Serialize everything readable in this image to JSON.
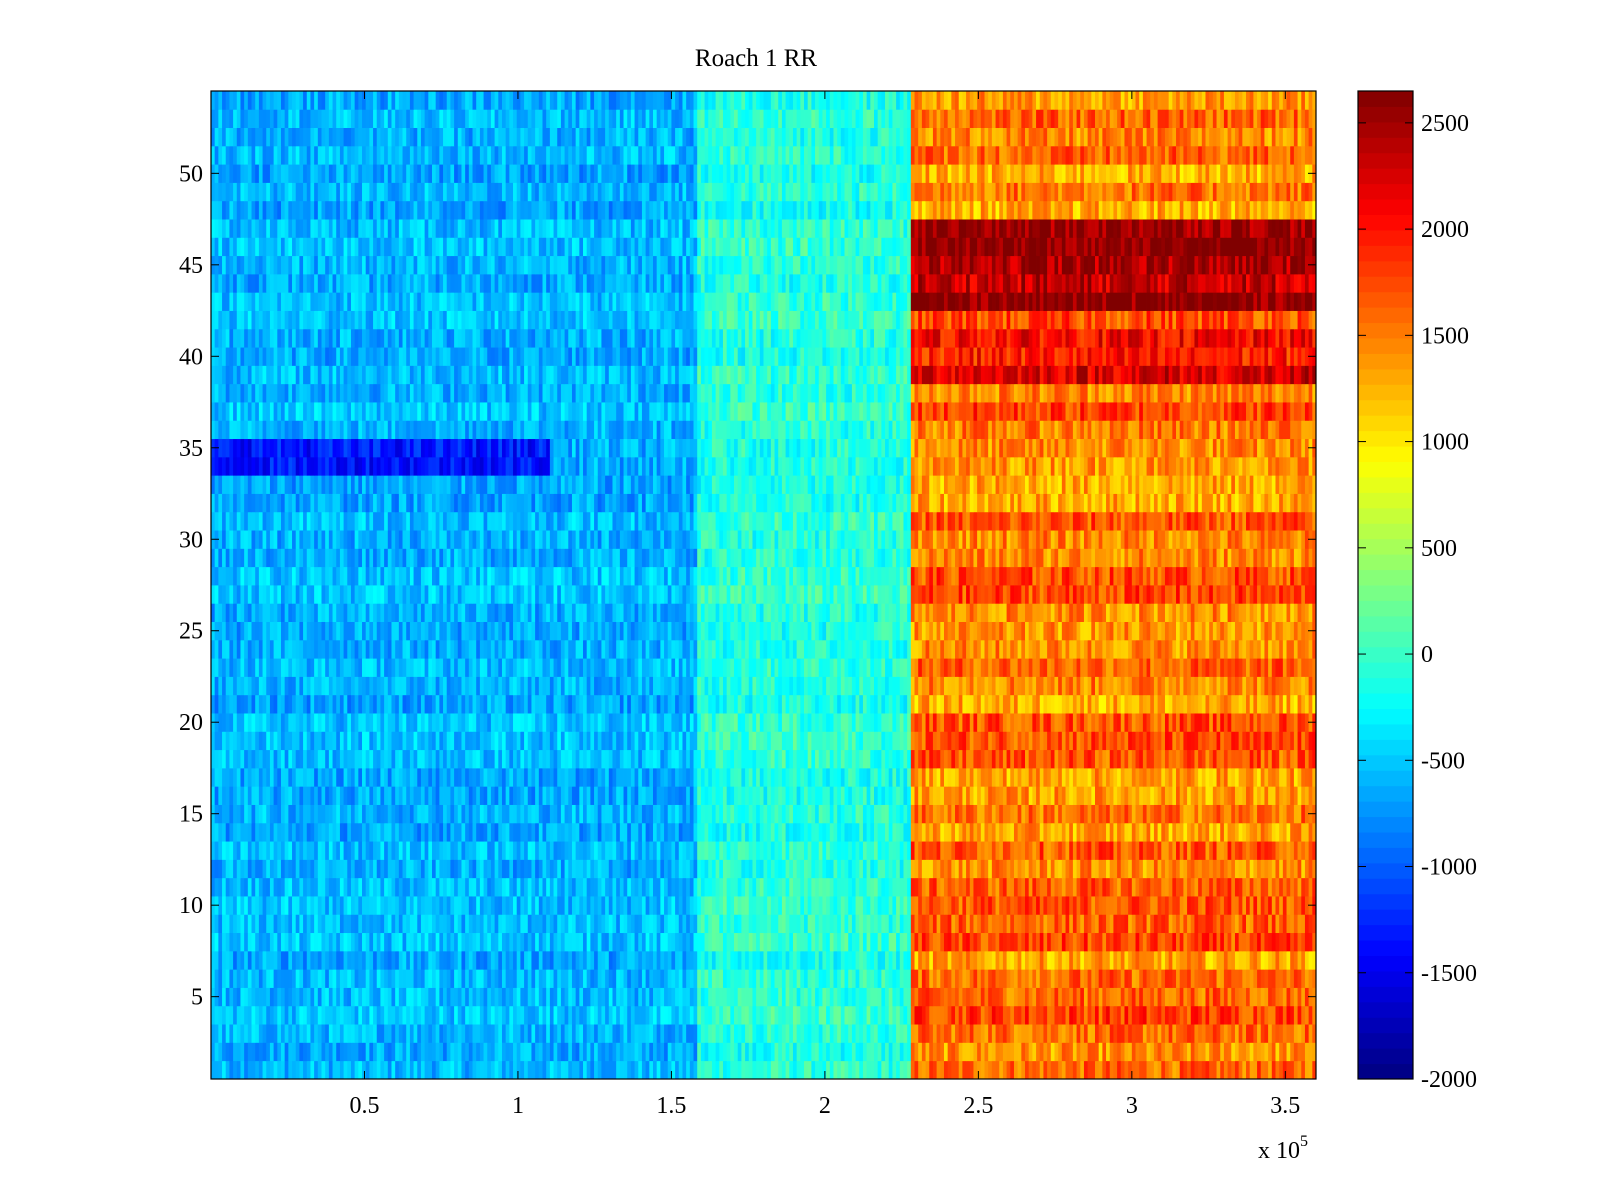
{
  "chart_data": {
    "type": "heatmap",
    "title": "Roach 1 RR",
    "xlabel": "",
    "ylabel": "",
    "x_multiplier_label": "x 10",
    "x_multiplier_exponent": "5",
    "xlim": [
      0,
      360000
    ],
    "ylim": [
      0.5,
      54.5
    ],
    "x_ticks": [
      0.5,
      1,
      1.5,
      2,
      2.5,
      3,
      3.5
    ],
    "x_tick_labels": [
      "0.5",
      "1",
      "1.5",
      "2",
      "2.5",
      "3",
      "3.5"
    ],
    "y_ticks": [
      5,
      10,
      15,
      20,
      25,
      30,
      35,
      40,
      45,
      50
    ],
    "y_tick_labels": [
      "5",
      "10",
      "15",
      "20",
      "25",
      "30",
      "35",
      "40",
      "45",
      "50"
    ],
    "rows": 54,
    "colormap": "jet",
    "clim": [
      -2000,
      2650
    ],
    "colorbar_ticks": [
      2500,
      2000,
      1500,
      1000,
      500,
      0,
      -500,
      -1000,
      -1500,
      -2000
    ],
    "colorbar_tick_labels": [
      "2500",
      "2000",
      "1500",
      "1000",
      "500",
      "0",
      "-500",
      "-1000",
      "-1500",
      "-2000"
    ],
    "regions": [
      {
        "x_range": [
          0,
          158000
        ],
        "typical_value": -600
      },
      {
        "x_range": [
          158000,
          228000
        ],
        "typical_value": -100
      },
      {
        "x_range": [
          228000,
          360000
        ],
        "typical_value": 1500
      }
    ],
    "notable_rows": [
      {
        "rows": [
          34,
          35
        ],
        "x_range": [
          0,
          110000
        ],
        "value": -1300
      },
      {
        "rows": [
          39,
          40,
          41
        ],
        "x_range": [
          228000,
          360000
        ],
        "value": 2100
      },
      {
        "rows": [
          43,
          44,
          45,
          46,
          47
        ],
        "x_range": [
          228000,
          360000
        ],
        "value": 2450
      }
    ]
  }
}
